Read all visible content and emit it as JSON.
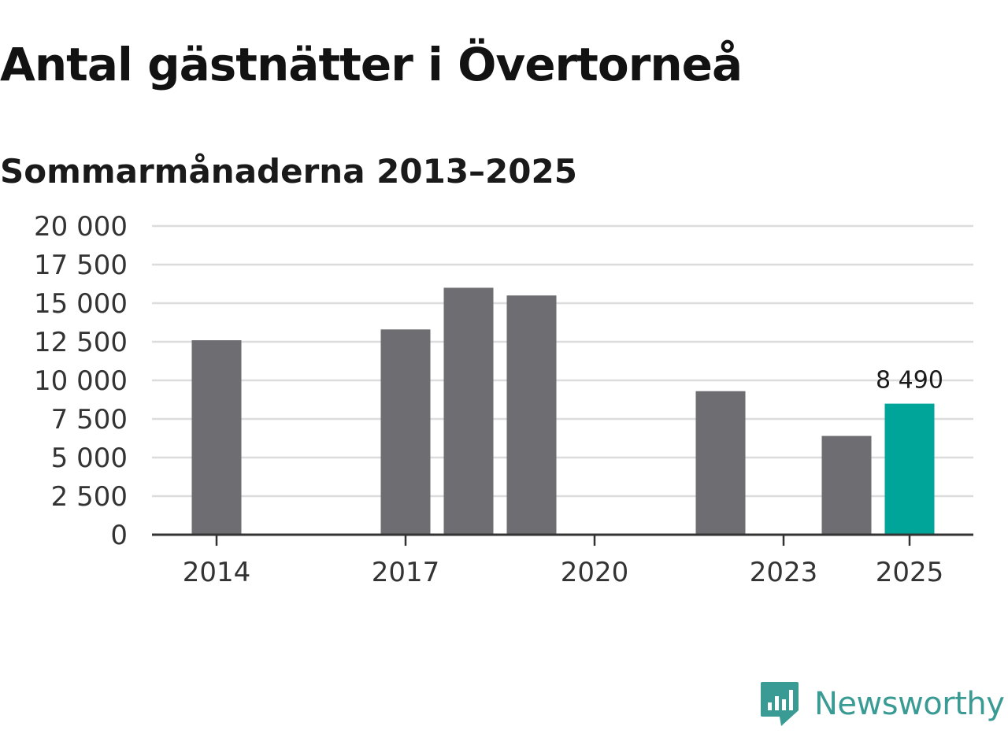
{
  "title": "Antal gästnätter i Övertorneå",
  "subtitle": "Sommarmånaderna 2013–2025",
  "brand": {
    "name": "Newsworthy",
    "color": "#3a9b94",
    "icon": "newsworthy-logo-icon"
  },
  "colors": {
    "bar": "#6e6d72",
    "highlight": "#00a59a",
    "grid": "#dcdcdc",
    "axis": "#333333"
  },
  "chart_data": {
    "type": "bar",
    "x": [
      2013,
      2014,
      2015,
      2016,
      2017,
      2018,
      2019,
      2020,
      2021,
      2022,
      2023,
      2024,
      2025
    ],
    "values": [
      null,
      12600,
      null,
      null,
      13300,
      16000,
      15500,
      null,
      null,
      9300,
      null,
      6400,
      8490
    ],
    "highlight": {
      "year": 2025,
      "label": "8 490"
    },
    "ylim": [
      0,
      20000
    ],
    "yticks": [
      0,
      2500,
      5000,
      7500,
      10000,
      12500,
      15000,
      17500,
      20000
    ],
    "ytick_labels": [
      "0",
      "2 500",
      "5 000",
      "7 500",
      "10 000",
      "12 500",
      "15 000",
      "17 500",
      "20 000"
    ],
    "xticks": [
      2014,
      2017,
      2020,
      2023,
      2025
    ],
    "xtick_labels": [
      "2014",
      "2017",
      "2020",
      "2023",
      "2025"
    ],
    "grid": true,
    "legend": "none"
  }
}
